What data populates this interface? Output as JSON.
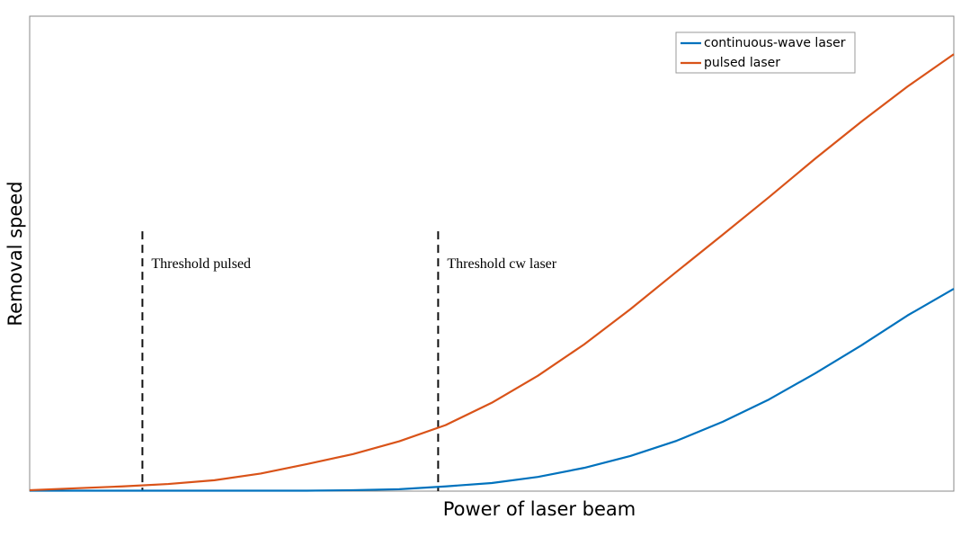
{
  "chart_data": {
    "type": "line",
    "xlabel": "Power of laser beam",
    "ylabel": "Removal speed",
    "x": [
      0,
      5,
      10,
      15,
      20,
      25,
      30,
      35,
      40,
      45,
      50,
      55,
      60,
      65,
      70,
      75,
      80,
      85,
      90,
      95,
      100
    ],
    "series": [
      {
        "name": "continuous-wave laser",
        "color": "#0072bd",
        "values": [
          0.1,
          0.1,
          0.1,
          0.1,
          0.1,
          0.1,
          0.1,
          0.2,
          0.4,
          1.0,
          1.7,
          3.0,
          4.9,
          7.4,
          10.6,
          14.6,
          19.3,
          24.8,
          30.7,
          37.0,
          42.6
        ]
      },
      {
        "name": "pulsed laser",
        "color": "#d95319",
        "values": [
          0.2,
          0.6,
          1.0,
          1.5,
          2.3,
          3.7,
          5.7,
          7.8,
          10.5,
          13.9,
          18.6,
          24.3,
          30.9,
          38.3,
          46.2,
          54.0,
          61.9,
          70.0,
          77.8,
          85.2,
          92.0
        ]
      }
    ],
    "annotations": [
      {
        "text": "Threshold pulsed",
        "x": 12.2,
        "y": 54.7
      },
      {
        "text": "Threshold cw laser",
        "x": 44.2,
        "y": 54.7
      }
    ],
    "xlim": [
      0,
      100
    ],
    "ylim": [
      0,
      100
    ],
    "legend": "upper right"
  }
}
